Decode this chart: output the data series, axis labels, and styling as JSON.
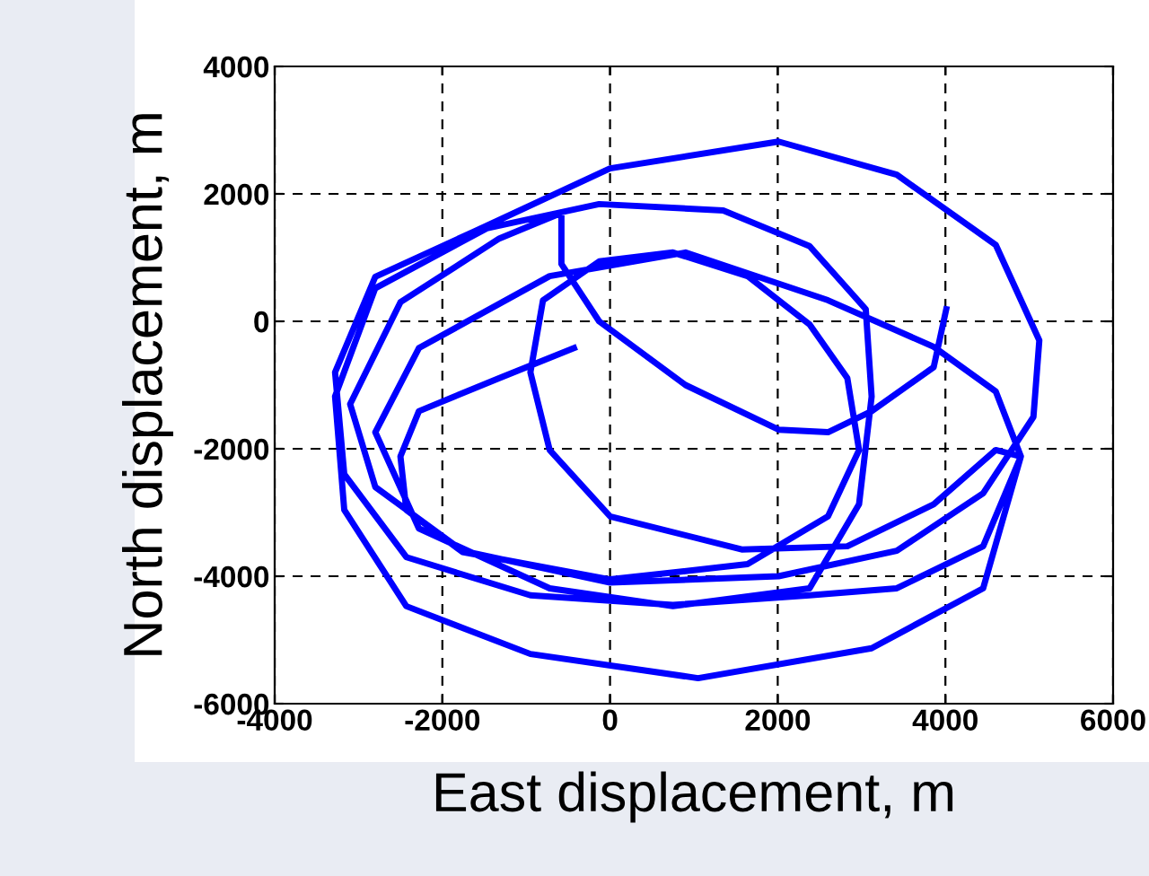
{
  "chart_data": {
    "type": "line",
    "xlabel": "East displacement, m",
    "ylabel": "North displacement, m",
    "xlim": [
      -4000,
      6000
    ],
    "xticks": [
      -4000,
      -2000,
      0,
      2000,
      4000,
      6000
    ],
    "ylim": [
      -6000,
      4000
    ],
    "yticks": [
      -6000,
      -4000,
      -2000,
      0,
      2000,
      4000
    ],
    "grid": true,
    "line_style": "solid",
    "marker": "none",
    "series": [
      {
        "color": "#0000ff",
        "x": [
          -430,
          -1320,
          -2280,
          -2500,
          -2430,
          -1760,
          0,
          1640,
          2600,
          2970,
          2830,
          2380,
          1640,
          750,
          -130,
          -800,
          -950,
          -720,
          0,
          1570,
          2830,
          3860,
          4600,
          4900,
          4450,
          3120,
          1050,
          -950,
          -2430,
          -3170,
          -3280,
          -2800,
          -1470,
          -130,
          1350,
          2380,
          3050,
          3120,
          2970,
          2380,
          750,
          -720,
          -2280,
          -2800,
          -2280,
          -720,
          900,
          2600,
          3860,
          4600,
          4900,
          4450,
          3420,
          2380,
          750,
          -950,
          -2430,
          -3170,
          -3280,
          -2800,
          -1470,
          0,
          2010,
          3420,
          4600,
          5120,
          5050,
          4450,
          3420,
          2010,
          0,
          -1760,
          -2800,
          -3100,
          -2500,
          -1320,
          -580,
          -580,
          -130,
          900,
          2010,
          2600,
          3120,
          3860,
          4010
        ],
        "values": [
          -420,
          -890,
          -1410,
          -2120,
          -2960,
          -3620,
          -4050,
          -3810,
          -3060,
          -2020,
          -890,
          -50,
          710,
          1080,
          940,
          330,
          -800,
          -2020,
          -3060,
          -3580,
          -3530,
          -2870,
          -2020,
          -2120,
          -4190,
          -5130,
          -5600,
          -5220,
          -4470,
          -2960,
          -1180,
          520,
          1460,
          1840,
          1740,
          1180,
          190,
          -1180,
          -2870,
          -4190,
          -4470,
          -4190,
          -3250,
          -1740,
          -420,
          710,
          1080,
          330,
          -400,
          -1100,
          -2120,
          -3530,
          -4190,
          -4300,
          -4450,
          -4300,
          -3700,
          -2400,
          -800,
          700,
          1500,
          2400,
          2820,
          2300,
          1200,
          -300,
          -1500,
          -2700,
          -3600,
          -4000,
          -4100,
          -3600,
          -2600,
          -1300,
          300,
          1300,
          1700,
          900,
          0,
          -1000,
          -1700,
          -1740,
          -1410,
          -720,
          190
        ]
      }
    ]
  }
}
